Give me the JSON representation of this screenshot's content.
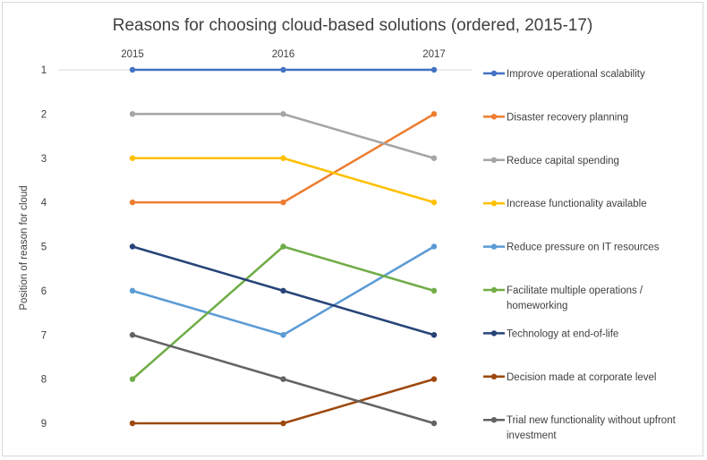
{
  "chart_data": {
    "type": "line",
    "title": "Reasons for choosing cloud-based solutions (ordered, 2015-17)",
    "ylabel": "Position of reason for cloud",
    "xlabel": "",
    "x": [
      "2015",
      "2016",
      "2017"
    ],
    "y_ticks": [
      "1",
      "2",
      "3",
      "4",
      "5",
      "6",
      "7",
      "8",
      "9"
    ],
    "ylim": [
      1,
      9
    ],
    "y_reversed": true,
    "x_axis_position": "top",
    "grid": false,
    "legend_position": "right",
    "series": [
      {
        "name": "Improve operational scalability",
        "values": [
          1,
          1,
          1
        ],
        "color": "#4472c4"
      },
      {
        "name": "Disaster recovery planning",
        "values": [
          4,
          4,
          2
        ],
        "color": "#ed7d31"
      },
      {
        "name": "Reduce capital spending",
        "values": [
          2,
          2,
          3
        ],
        "color": "#a5a5a5"
      },
      {
        "name": "Increase functionality available",
        "values": [
          3,
          3,
          4
        ],
        "color": "#ffc000"
      },
      {
        "name": "Reduce pressure on IT resources",
        "values": [
          6,
          7,
          5
        ],
        "color": "#5b9bd5"
      },
      {
        "name": "Facilitate multiple operations / homeworking",
        "values": [
          8,
          5,
          6
        ],
        "color": "#70ad47"
      },
      {
        "name": "Technology at end-of-life",
        "values": [
          5,
          6,
          7
        ],
        "color": "#264478"
      },
      {
        "name": "Decision made at corporate level",
        "values": [
          9,
          9,
          8
        ],
        "color": "#9e480e"
      },
      {
        "name": "Trial new functionality without upfront investment",
        "values": [
          7,
          8,
          9
        ],
        "color": "#636363"
      }
    ]
  }
}
